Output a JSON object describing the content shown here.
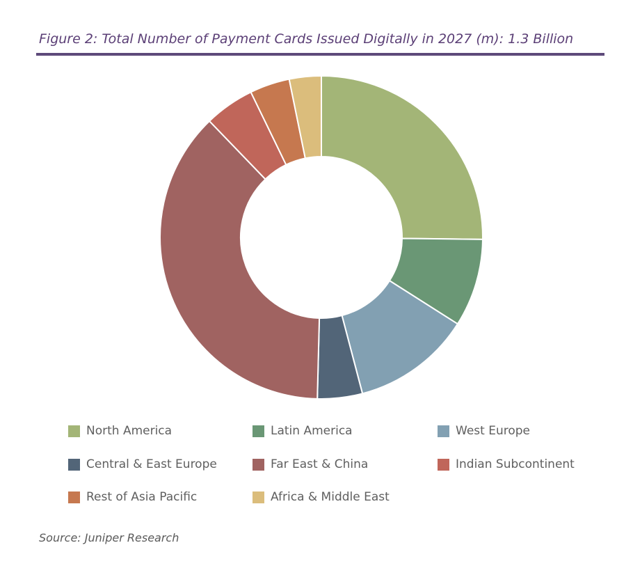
{
  "figure": {
    "title": "Figure 2: Total Number of Payment Cards Issued Digitally in 2027 (m): 1.3 Billion",
    "source": "Source: Juniper Research"
  },
  "chart_data": {
    "type": "pie",
    "variant": "donut",
    "unit": "%",
    "legend_placement": "bottom",
    "slices": [
      {
        "label": "North America",
        "value": 25.2,
        "color": "#a3b577"
      },
      {
        "label": "Latin America",
        "value": 8.8,
        "color": "#6a9775"
      },
      {
        "label": "West Europe",
        "value": 11.9,
        "color": "#82a0b2"
      },
      {
        "label": "Central & East Europe",
        "value": 4.5,
        "color": "#526578"
      },
      {
        "label": "Far East & China",
        "value": 37.4,
        "color": "#a06361"
      },
      {
        "label": "Indian Subcontinent",
        "value": 5.0,
        "color": "#c0665a"
      },
      {
        "label": "Rest of Asia Pacific",
        "value": 4.0,
        "color": "#c6784f"
      },
      {
        "label": "Africa & Middle East",
        "value": 3.2,
        "color": "#dbbd7c"
      }
    ]
  }
}
